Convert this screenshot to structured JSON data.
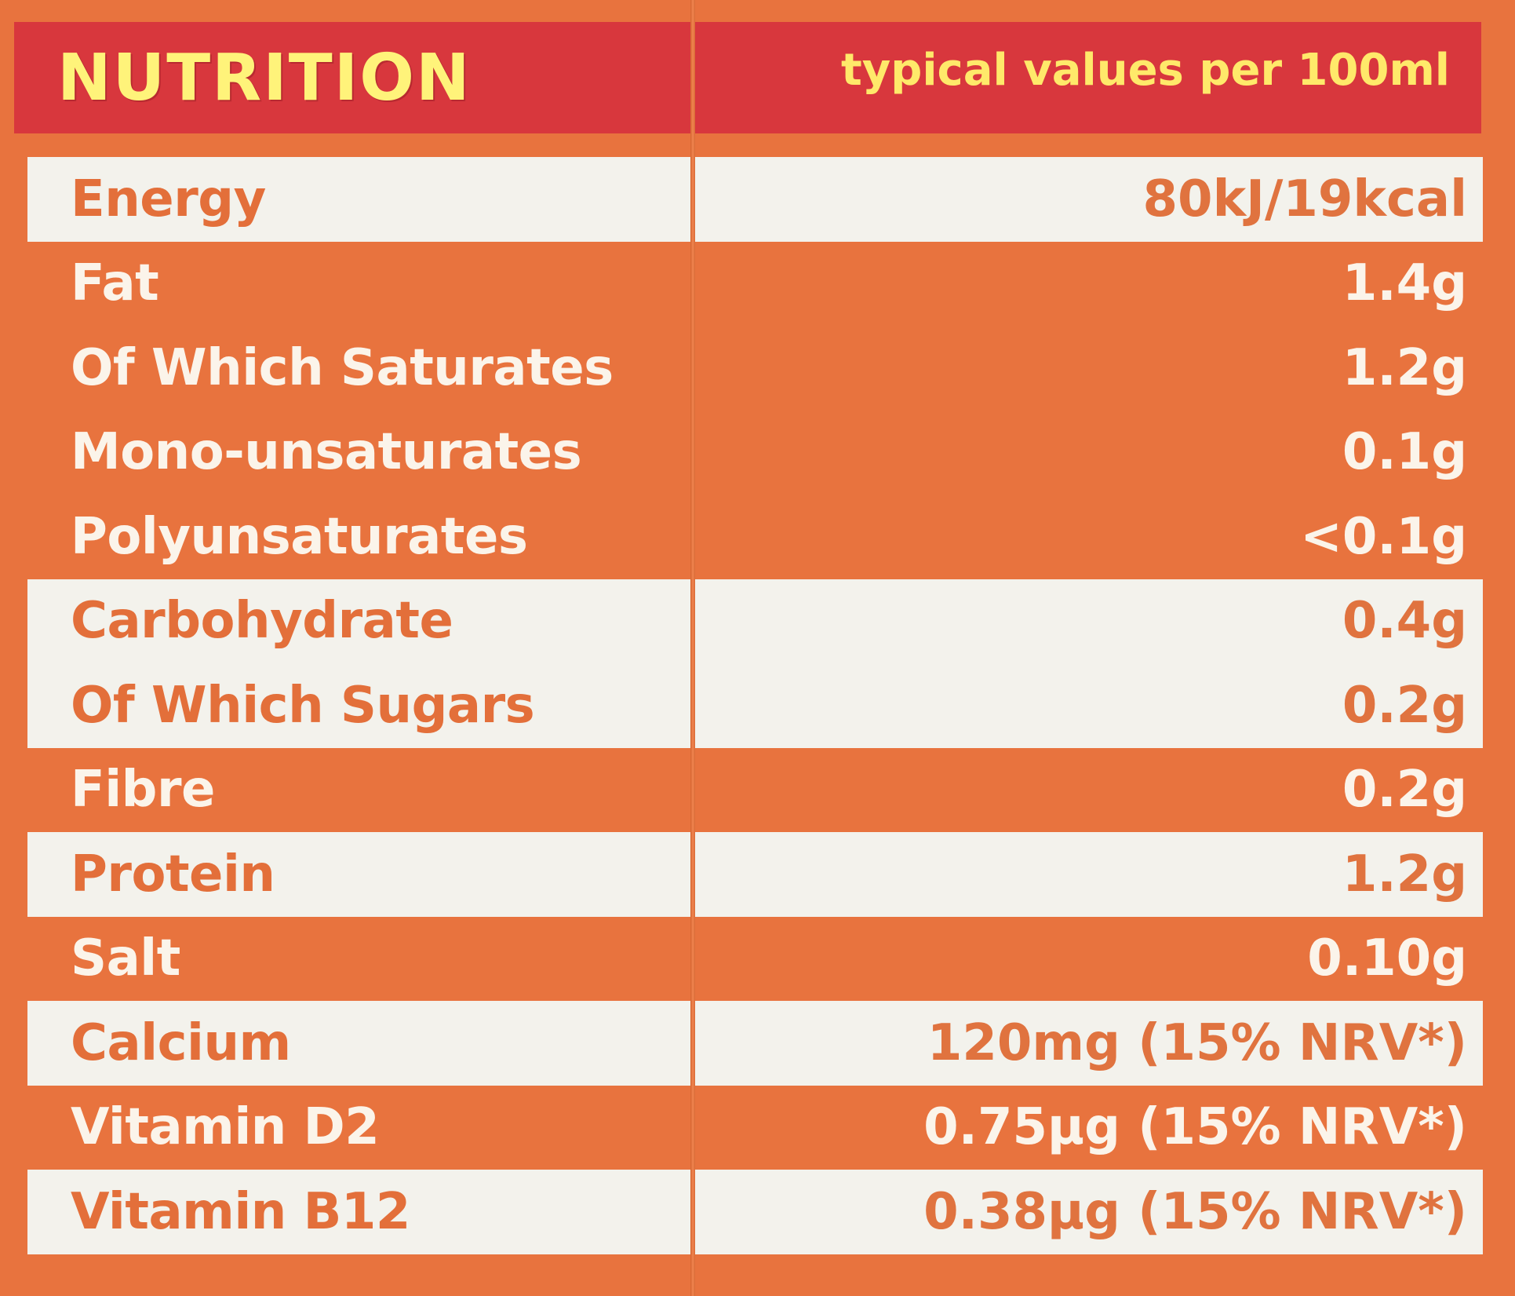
{
  "header": {
    "title": "NUTRITION",
    "subtitle": "typical values per 100ml"
  },
  "colors": {
    "background": "#e8733e",
    "header_bar": "#d8373d",
    "header_text": "#fff37a",
    "highlight_row": "#f3f2ec",
    "text_light": "#fbf4ea",
    "text_orange": "#e36f3a"
  },
  "rows": [
    {
      "name": "Energy",
      "value": "80kJ/19kcal",
      "highlight": true
    },
    {
      "name": "Fat",
      "value": "1.4g",
      "highlight": false
    },
    {
      "name": "Of Which Saturates",
      "value": "1.2g",
      "highlight": false
    },
    {
      "name": "Mono-unsaturates",
      "value": "0.1g",
      "highlight": false
    },
    {
      "name": "Polyunsaturates",
      "value": "<0.1g",
      "highlight": false
    },
    {
      "name": "Carbohydrate",
      "value": "0.4g",
      "highlight": true
    },
    {
      "name": "Of Which Sugars",
      "value": "0.2g",
      "highlight": true
    },
    {
      "name": "Fibre",
      "value": "0.2g",
      "highlight": false
    },
    {
      "name": "Protein",
      "value": "1.2g",
      "highlight": true
    },
    {
      "name": "Salt",
      "value": "0.10g",
      "highlight": false
    },
    {
      "name": "Calcium",
      "value": "120mg (15% NRV*)",
      "highlight": true
    },
    {
      "name": "Vitamin D2",
      "value": "0.75µg (15% NRV*)",
      "highlight": false
    },
    {
      "name": "Vitamin B12",
      "value": "0.38µg (15% NRV*)",
      "highlight": true
    }
  ]
}
